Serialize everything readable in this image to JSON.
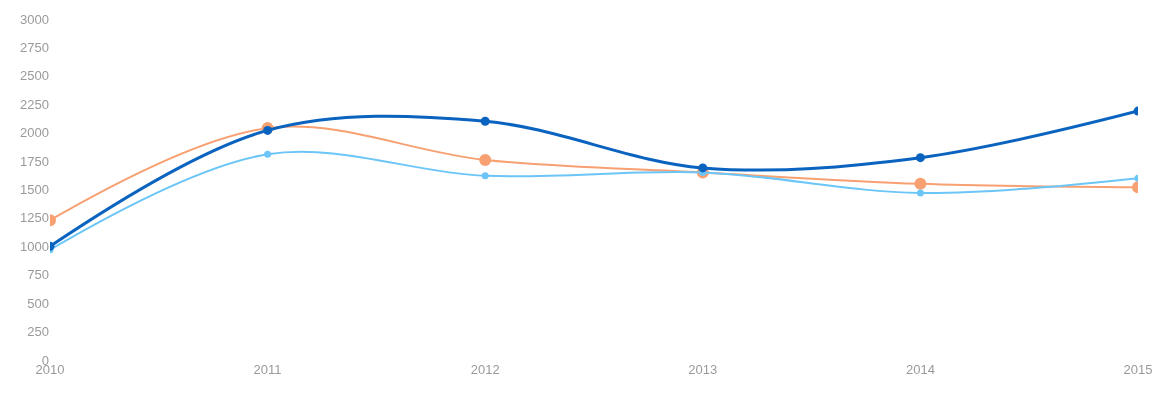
{
  "chart_data": {
    "type": "line",
    "x": [
      2010,
      2011,
      2012,
      2013,
      2014,
      2015
    ],
    "xlim": [
      2010,
      2015
    ],
    "xticks": [
      2010,
      2011,
      2012,
      2013,
      2014,
      2015
    ],
    "ylim": [
      0,
      3000
    ],
    "yticks": [
      0,
      250,
      500,
      750,
      1000,
      1250,
      1500,
      1750,
      2000,
      2250,
      2500,
      2750,
      3000
    ],
    "series": [
      {
        "color": "#f7a072",
        "values": [
          1230,
          2040,
          1760,
          1650,
          1550,
          1520
        ]
      },
      {
        "color": "#6cc5f7",
        "values": [
          970,
          1810,
          1620,
          1650,
          1470,
          1600
        ]
      },
      {
        "color": "#0a63bf",
        "values": [
          1000,
          2020,
          2100,
          1690,
          1780,
          2190
        ]
      }
    ],
    "marker": "circle",
    "line_style": "solid"
  }
}
